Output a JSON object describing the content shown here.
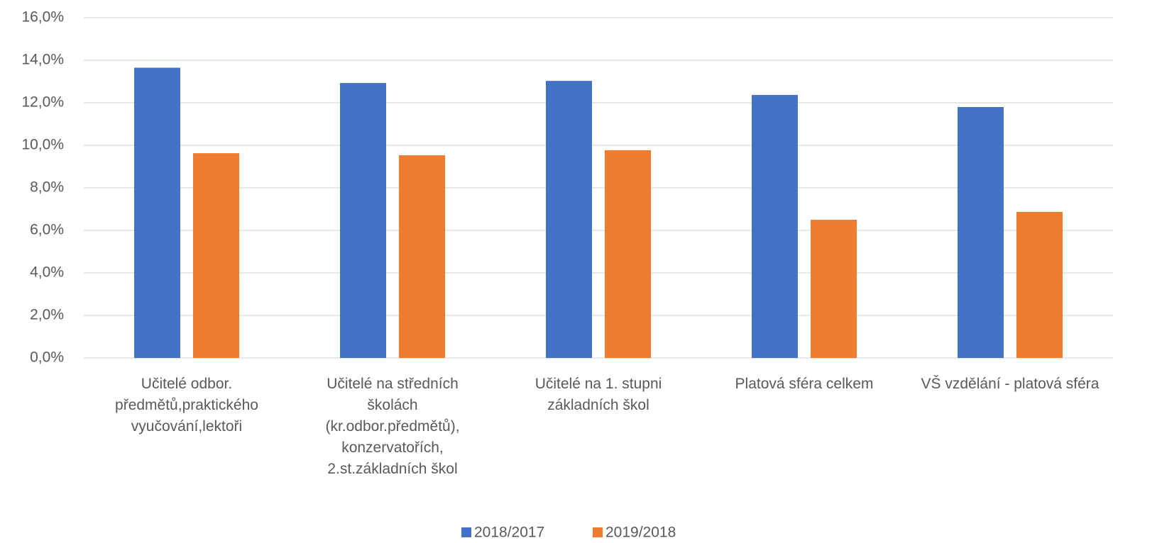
{
  "chart_data": {
    "type": "bar",
    "categories": [
      "Učitelé odbor.\npředmětů,praktického\nvyučování,lektoři",
      "Učitelé na středních\nškolách\n(kr.odbor.předmětů),\nkonzervatořích,\n2.st.základních škol",
      "Učitelé na 1. stupni\nzákladních škol",
      "Platová sféra celkem",
      "VŠ vzdělání - platová sféra"
    ],
    "series": [
      {
        "name": "2018/2017",
        "color": "#4472c4",
        "values": [
          13.65,
          12.93,
          13.03,
          12.37,
          11.8
        ]
      },
      {
        "name": "2019/2018",
        "color": "#ed7d31",
        "values": [
          9.63,
          9.53,
          9.77,
          6.5,
          6.87
        ]
      }
    ],
    "ylim": [
      0,
      16
    ],
    "yticks": [
      {
        "value": 0,
        "label": "0,0%"
      },
      {
        "value": 2,
        "label": "2,0%"
      },
      {
        "value": 4,
        "label": "4,0%"
      },
      {
        "value": 6,
        "label": "6,0%"
      },
      {
        "value": 8,
        "label": "8,0%"
      },
      {
        "value": 10,
        "label": "10,0%"
      },
      {
        "value": 12,
        "label": "12,0%"
      },
      {
        "value": 14,
        "label": "14,0%"
      },
      {
        "value": 16,
        "label": "16,0%"
      }
    ],
    "grid": true,
    "legend": "bottom"
  }
}
